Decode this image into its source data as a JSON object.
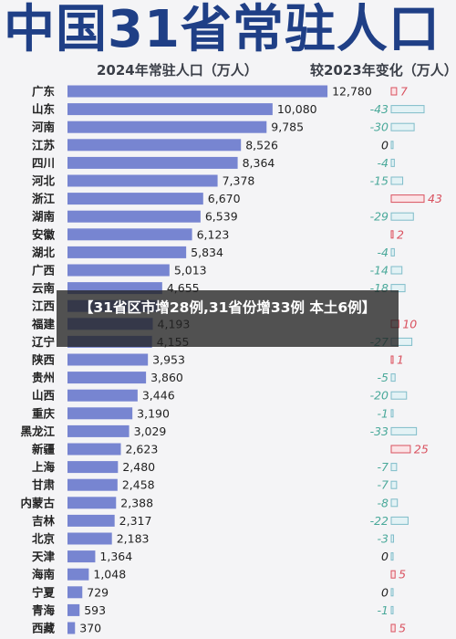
{
  "title": "中国31省常驻人口",
  "subtitle_left": "2024年常驻人口（万人）",
  "subtitle_right": "较2023年变化（万人）",
  "overlay_text": "【31省区市增28例,31省份增33例 本土6例】",
  "colors": {
    "bar": "#7785d1",
    "increase": "#d9515f",
    "decrease": "#4aa99a"
  },
  "chart_data": {
    "type": "bar",
    "orientation": "horizontal",
    "series": [
      {
        "name": "2024年常驻人口（万人）",
        "values": [
          12780,
          10080,
          9785,
          8526,
          8364,
          7378,
          6670,
          6539,
          6123,
          5834,
          5013,
          4655,
          4500,
          4193,
          4155,
          3953,
          3860,
          3446,
          3190,
          3029,
          2623,
          2480,
          2458,
          2388,
          2317,
          2183,
          1364,
          1048,
          729,
          593,
          370
        ]
      },
      {
        "name": "较2023年变化（万人）",
        "values": [
          7,
          -43,
          -30,
          0,
          -4,
          -15,
          43,
          -29,
          2,
          -4,
          -14,
          -18,
          null,
          10,
          -27,
          1,
          -5,
          -20,
          -1,
          -33,
          25,
          -7,
          -7,
          -8,
          -22,
          -3,
          0,
          5,
          0,
          -1,
          5
        ]
      }
    ],
    "categories": [
      "广东",
      "山东",
      "河南",
      "江苏",
      "四川",
      "河北",
      "浙江",
      "湖南",
      "安徽",
      "湖北",
      "广西",
      "云南",
      "江西",
      "福建",
      "辽宁",
      "陕西",
      "贵州",
      "山西",
      "重庆",
      "黑龙江",
      "新疆",
      "上海",
      "甘肃",
      "内蒙古",
      "吉林",
      "北京",
      "天津",
      "海南",
      "宁夏",
      "青海",
      "西藏"
    ],
    "value_labels": [
      "12,780",
      "10,080",
      "9,785",
      "8,526",
      "8,364",
      "7,378",
      "6,670",
      "6,539",
      "6,123",
      "5,834",
      "5,013",
      "4,655",
      "",
      "4,193",
      "4,155",
      "3,953",
      "3,860",
      "3,446",
      "3,190",
      "3,029",
      "2,623",
      "2,480",
      "2,458",
      "2,388",
      "2,317",
      "2,183",
      "1,364",
      "1,048",
      "729",
      "593",
      "370"
    ],
    "change_labels": [
      "7",
      "-43",
      "-30",
      "0",
      "-4",
      "-15",
      "43",
      "-29",
      "2",
      "-4",
      "-14",
      "-18",
      "",
      "10",
      "-27",
      "1",
      "-5",
      "-20",
      "-1",
      "-33",
      "25",
      "-7",
      "-7",
      "-8",
      "-22",
      "-3",
      "0",
      "5",
      "0",
      "-1",
      "5"
    ],
    "xlim": [
      0,
      13000
    ],
    "change_lim": [
      -43,
      43
    ],
    "legend": "none",
    "grid": false
  }
}
